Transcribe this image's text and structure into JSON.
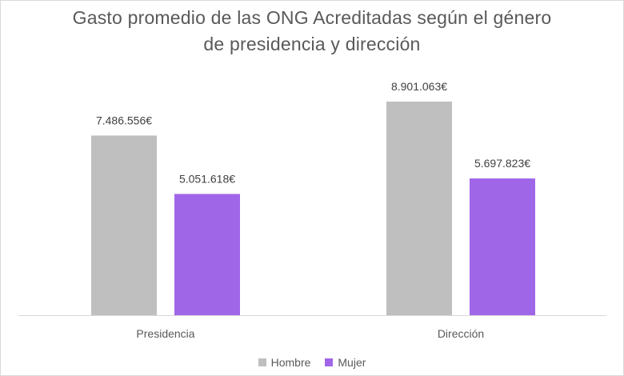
{
  "chart_data": {
    "type": "bar",
    "title_lines": [
      "Gasto promedio de las ONG Acreditadas según el género",
      "de presidencia y dirección"
    ],
    "categories": [
      "Presidencia",
      "Dirección"
    ],
    "series": [
      {
        "name": "Hombre",
        "color": "#bfbfbf",
        "values": [
          7486556,
          8901063
        ],
        "labels": [
          "7.486.556€",
          "8.901.063€"
        ]
      },
      {
        "name": "Mujer",
        "color": "#a066e8",
        "values": [
          5051618,
          5697823
        ],
        "labels": [
          "5.051.618€",
          "5.697.823€"
        ]
      }
    ],
    "ylim": [
      0,
      10000000
    ],
    "grid": false,
    "legend_position": "bottom"
  }
}
